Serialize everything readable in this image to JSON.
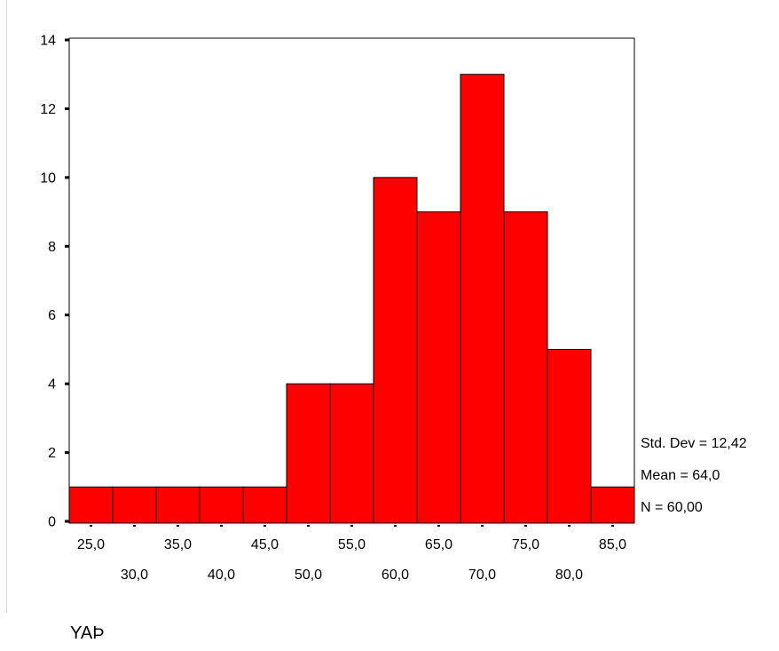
{
  "chart_data": {
    "type": "bar",
    "categories": [
      "25,0",
      "30,0",
      "35,0",
      "40,0",
      "45,0",
      "50,0",
      "55,0",
      "60,0",
      "65,0",
      "70,0",
      "75,0",
      "80,0",
      "85,0"
    ],
    "values": [
      1,
      1,
      1,
      1,
      1,
      4,
      4,
      10,
      9,
      13,
      9,
      5,
      1
    ],
    "bar_color": "#ff0000",
    "xlabel": "YAÞ",
    "ylabel": "",
    "ylim": [
      0,
      14
    ],
    "yticks": [
      0,
      2,
      4,
      6,
      8,
      10,
      12,
      14
    ],
    "grid": false,
    "stats": {
      "std_dev": "Std. Dev = 12,42",
      "mean": "Mean = 64,0",
      "n": "N = 60,00"
    }
  }
}
